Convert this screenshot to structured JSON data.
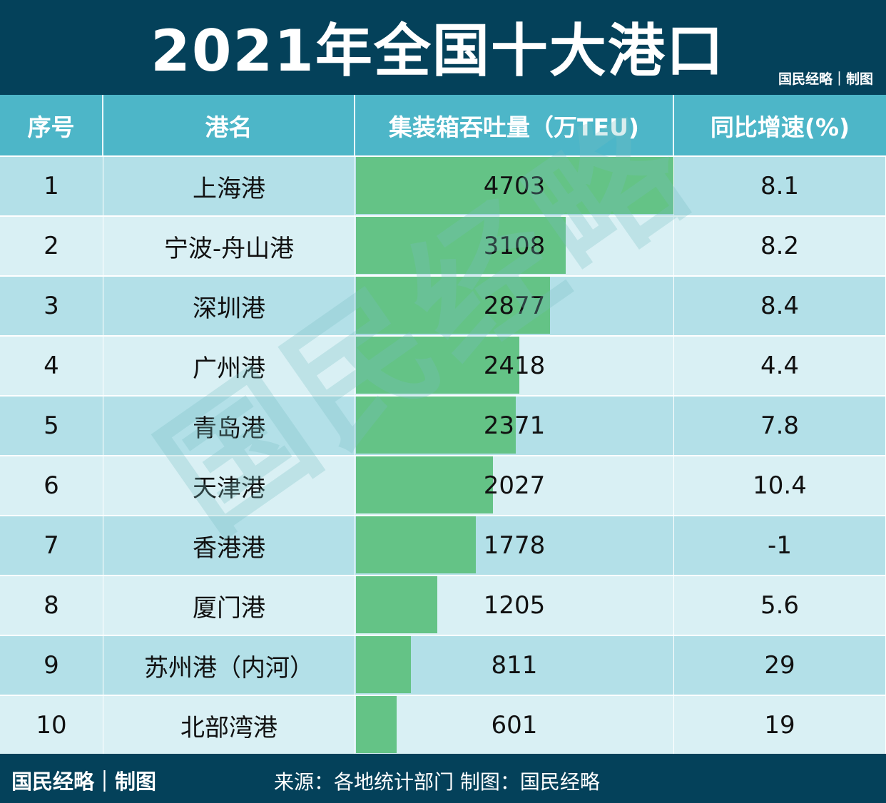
{
  "title": "2021年全国十大港口",
  "credit": "国民经略｜制图",
  "watermark": "国民经略",
  "footer": {
    "credit": "国民经略｜制图",
    "source": "来源：各地统计部门 制图：国民经略"
  },
  "colors": {
    "title_bg": "#04415a",
    "header_bg": "#4db6c8",
    "row_odd": "#b3e0e8",
    "row_even": "#d9f0f4",
    "bar": "#64c386"
  },
  "chart_data": {
    "type": "table",
    "columns": [
      "序号",
      "港名",
      "集装箱吞吐量（万TEU)",
      "同比增速(%)"
    ],
    "rows": [
      {
        "rank": "1",
        "port": "上海港",
        "throughput": 4703,
        "growth": "8.1"
      },
      {
        "rank": "2",
        "port": "宁波-舟山港",
        "throughput": 3108,
        "growth": "8.2"
      },
      {
        "rank": "3",
        "port": "深圳港",
        "throughput": 2877,
        "growth": "8.4"
      },
      {
        "rank": "4",
        "port": "广州港",
        "throughput": 2418,
        "growth": "4.4"
      },
      {
        "rank": "5",
        "port": "青岛港",
        "throughput": 2371,
        "growth": "7.8"
      },
      {
        "rank": "6",
        "port": "天津港",
        "throughput": 2027,
        "growth": "10.4"
      },
      {
        "rank": "7",
        "port": "香港港",
        "throughput": 1778,
        "growth": "-1"
      },
      {
        "rank": "8",
        "port": "厦门港",
        "throughput": 1205,
        "growth": "5.6"
      },
      {
        "rank": "9",
        "port": "苏州港（内河）",
        "throughput": 811,
        "growth": "29"
      },
      {
        "rank": "10",
        "port": "北部湾港",
        "throughput": 601,
        "growth": "19"
      }
    ]
  }
}
